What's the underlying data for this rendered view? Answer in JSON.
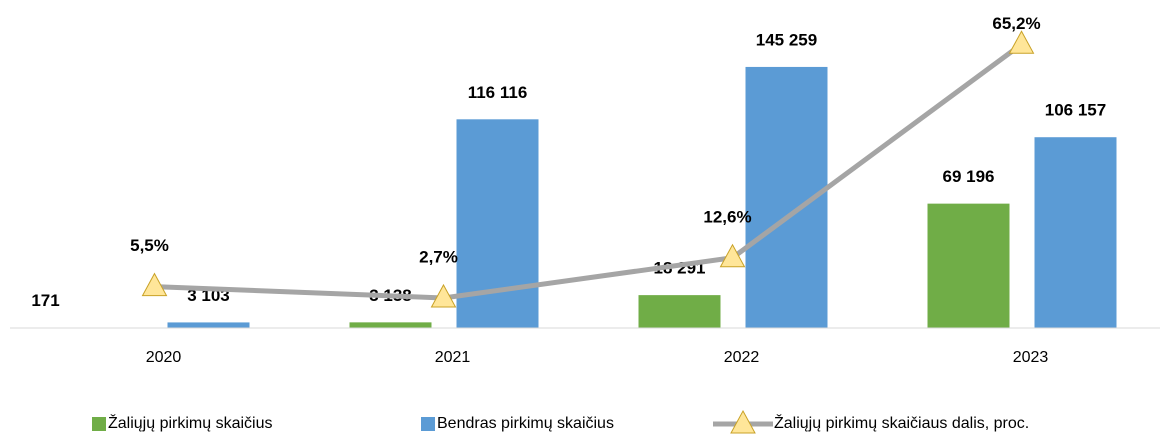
{
  "chart_data": {
    "type": "bar",
    "categories": [
      "2020",
      "2021",
      "2022",
      "2023"
    ],
    "series": [
      {
        "name": "Žaliųjų pirkimų skaičius",
        "color": "#70ad47",
        "type": "bar",
        "values": [
          171,
          3138,
          18291,
          69196
        ],
        "value_labels": [
          "171",
          "3 138",
          "18 291",
          "69 196"
        ]
      },
      {
        "name": "Bendras pirkimų skaičius",
        "color": "#5b9bd5",
        "type": "bar",
        "values": [
          3103,
          116116,
          145259,
          106157
        ],
        "value_labels": [
          "3 103",
          "116 116",
          "145 259",
          "106 157"
        ]
      },
      {
        "name": "Žaliųjų pirkimų skaičiaus dalis, proc.",
        "color": "#a5a5a5",
        "type": "line",
        "axis": "y2",
        "values": [
          5.5,
          2.7,
          12.6,
          65.2
        ],
        "value_labels": [
          "5,5%",
          "2,7%",
          "12,6%",
          "65,2%"
        ]
      }
    ],
    "ylim": [
      0,
      180000
    ],
    "y2lim": [
      -4.7,
      75
    ],
    "legend": "bottom"
  }
}
